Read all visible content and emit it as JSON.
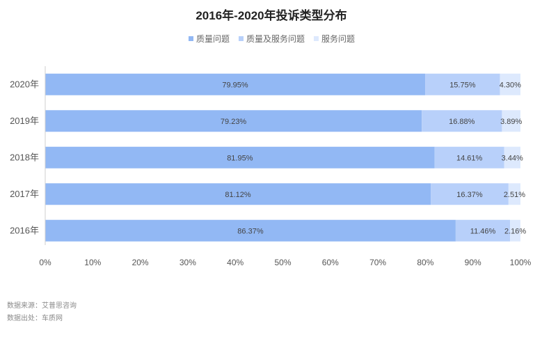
{
  "chart_data": {
    "type": "bar",
    "orientation": "horizontal",
    "stacked": true,
    "title": "2016年-2020年投诉类型分布",
    "categories": [
      "2020年",
      "2019年",
      "2018年",
      "2017年",
      "2016年"
    ],
    "series": [
      {
        "name": "质量问题",
        "color": "#92b8f4",
        "values": [
          79.95,
          79.23,
          81.95,
          81.12,
          86.37
        ],
        "labels": [
          "79.95%",
          "79.23%",
          "81.95%",
          "81.12%",
          "86.37%"
        ]
      },
      {
        "name": "质量及服务问题",
        "color": "#b8d0fa",
        "values": [
          15.75,
          16.88,
          14.61,
          16.37,
          11.46
        ],
        "labels": [
          "15.75%",
          "16.88%",
          "14.61%",
          "16.37%",
          "11.46%"
        ]
      },
      {
        "name": "服务问题",
        "color": "#dde9fd",
        "values": [
          4.3,
          3.89,
          3.44,
          2.51,
          2.16
        ],
        "labels": [
          "4.30%",
          "3.89%",
          "3.44%",
          "2.51%",
          "2.16%"
        ]
      }
    ],
    "xlim": [
      0,
      100
    ],
    "xticks": [
      "0%",
      "10%",
      "20%",
      "30%",
      "40%",
      "50%",
      "60%",
      "70%",
      "80%",
      "90%",
      "100%"
    ],
    "legend_position": "top-center",
    "grid": false
  },
  "footer": {
    "source": "数据来源：艾普思咨询",
    "origin": "数据出处：车质网"
  }
}
